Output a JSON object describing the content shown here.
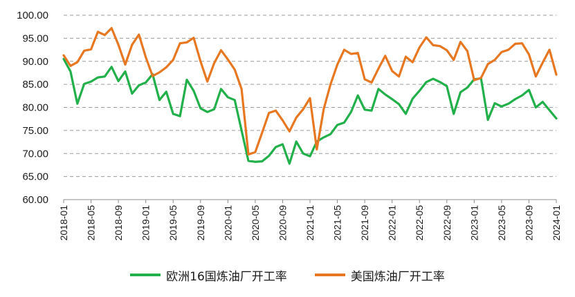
{
  "chart_data": {
    "type": "line",
    "x": [
      "2018-01",
      "2018-02",
      "2018-03",
      "2018-04",
      "2018-05",
      "2018-06",
      "2018-07",
      "2018-08",
      "2018-09",
      "2018-10",
      "2018-11",
      "2018-12",
      "2019-01",
      "2019-02",
      "2019-03",
      "2019-04",
      "2019-05",
      "2019-06",
      "2019-07",
      "2019-08",
      "2019-09",
      "2019-10",
      "2019-11",
      "2019-12",
      "2020-01",
      "2020-02",
      "2020-03",
      "2020-04",
      "2020-05",
      "2020-06",
      "2020-07",
      "2020-08",
      "2020-09",
      "2020-10",
      "2020-11",
      "2020-12",
      "2021-01",
      "2021-02",
      "2021-03",
      "2021-04",
      "2021-05",
      "2021-06",
      "2021-07",
      "2021-08",
      "2021-09",
      "2021-10",
      "2021-11",
      "2021-12",
      "2022-01",
      "2022-02",
      "2022-03",
      "2022-04",
      "2022-05",
      "2022-06",
      "2022-07",
      "2022-08",
      "2022-09",
      "2022-10",
      "2022-11",
      "2022-12",
      "2023-01",
      "2023-02",
      "2023-03",
      "2023-04",
      "2023-05",
      "2023-06",
      "2023-07",
      "2023-08",
      "2023-09",
      "2023-10",
      "2023-11",
      "2023-12",
      "2024-01"
    ],
    "x_tick_labels": [
      "2018-01",
      "2018-05",
      "2018-09",
      "2019-01",
      "2019-05",
      "2019-09",
      "2020-01",
      "2020-05",
      "2020-09",
      "2021-01",
      "2021-05",
      "2021-09",
      "2022-01",
      "2022-05",
      "2022-09",
      "2023-01",
      "2023-05",
      "2023-09",
      "2024-01"
    ],
    "y_tick_labels": [
      "60.00",
      "65.00",
      "70.00",
      "75.00",
      "80.00",
      "85.00",
      "90.00",
      "95.00",
      "100.00"
    ],
    "ylim": [
      60,
      100
    ],
    "grid": "horizontal dashed",
    "legend_position": "bottom",
    "series": [
      {
        "name": "欧洲16国炼油厂开工率",
        "color": "#22b04b",
        "values": [
          90.5,
          87.8,
          80.8,
          85.1,
          85.6,
          86.5,
          86.7,
          88.8,
          85.7,
          87.8,
          83.0,
          84.8,
          85.4,
          87.2,
          81.6,
          83.4,
          78.6,
          78.1,
          86.0,
          83.6,
          79.8,
          79.0,
          79.6,
          84.0,
          82.2,
          81.6,
          75.0,
          68.4,
          68.2,
          68.3,
          69.5,
          71.4,
          72.0,
          67.8,
          72.6,
          70.0,
          69.4,
          72.6,
          73.5,
          74.2,
          76.2,
          76.7,
          79.0,
          82.6,
          79.5,
          79.3,
          84.0,
          82.8,
          81.8,
          80.7,
          78.6,
          81.9,
          83.6,
          85.5,
          86.2,
          85.5,
          84.6,
          78.6,
          83.3,
          84.3,
          86.1,
          86.3,
          77.3,
          80.9,
          80.2,
          80.8,
          81.8,
          82.6,
          83.8,
          80.0,
          81.2,
          79.4,
          77.6
        ]
      },
      {
        "name": "美国炼油厂开工率",
        "color": "#e87722",
        "values": [
          91.3,
          89.0,
          89.8,
          92.3,
          92.6,
          96.4,
          95.7,
          97.2,
          93.6,
          89.3,
          93.6,
          95.8,
          90.9,
          86.8,
          87.6,
          88.7,
          90.3,
          93.9,
          94.1,
          95.1,
          90.0,
          85.6,
          89.6,
          92.4,
          90.4,
          88.2,
          84.0,
          69.8,
          70.3,
          74.5,
          78.8,
          79.3,
          77.2,
          74.8,
          77.8,
          79.6,
          82.0,
          70.9,
          79.6,
          85.0,
          89.3,
          92.5,
          91.6,
          91.8,
          86.1,
          85.4,
          88.4,
          91.2,
          87.9,
          86.7,
          91.0,
          89.8,
          93.0,
          95.2,
          93.5,
          93.3,
          92.4,
          90.3,
          94.2,
          92.2,
          85.9,
          86.4,
          89.4,
          90.3,
          92.0,
          92.5,
          93.8,
          93.9,
          91.5,
          86.7,
          89.7,
          92.5,
          87.1
        ]
      }
    ]
  }
}
